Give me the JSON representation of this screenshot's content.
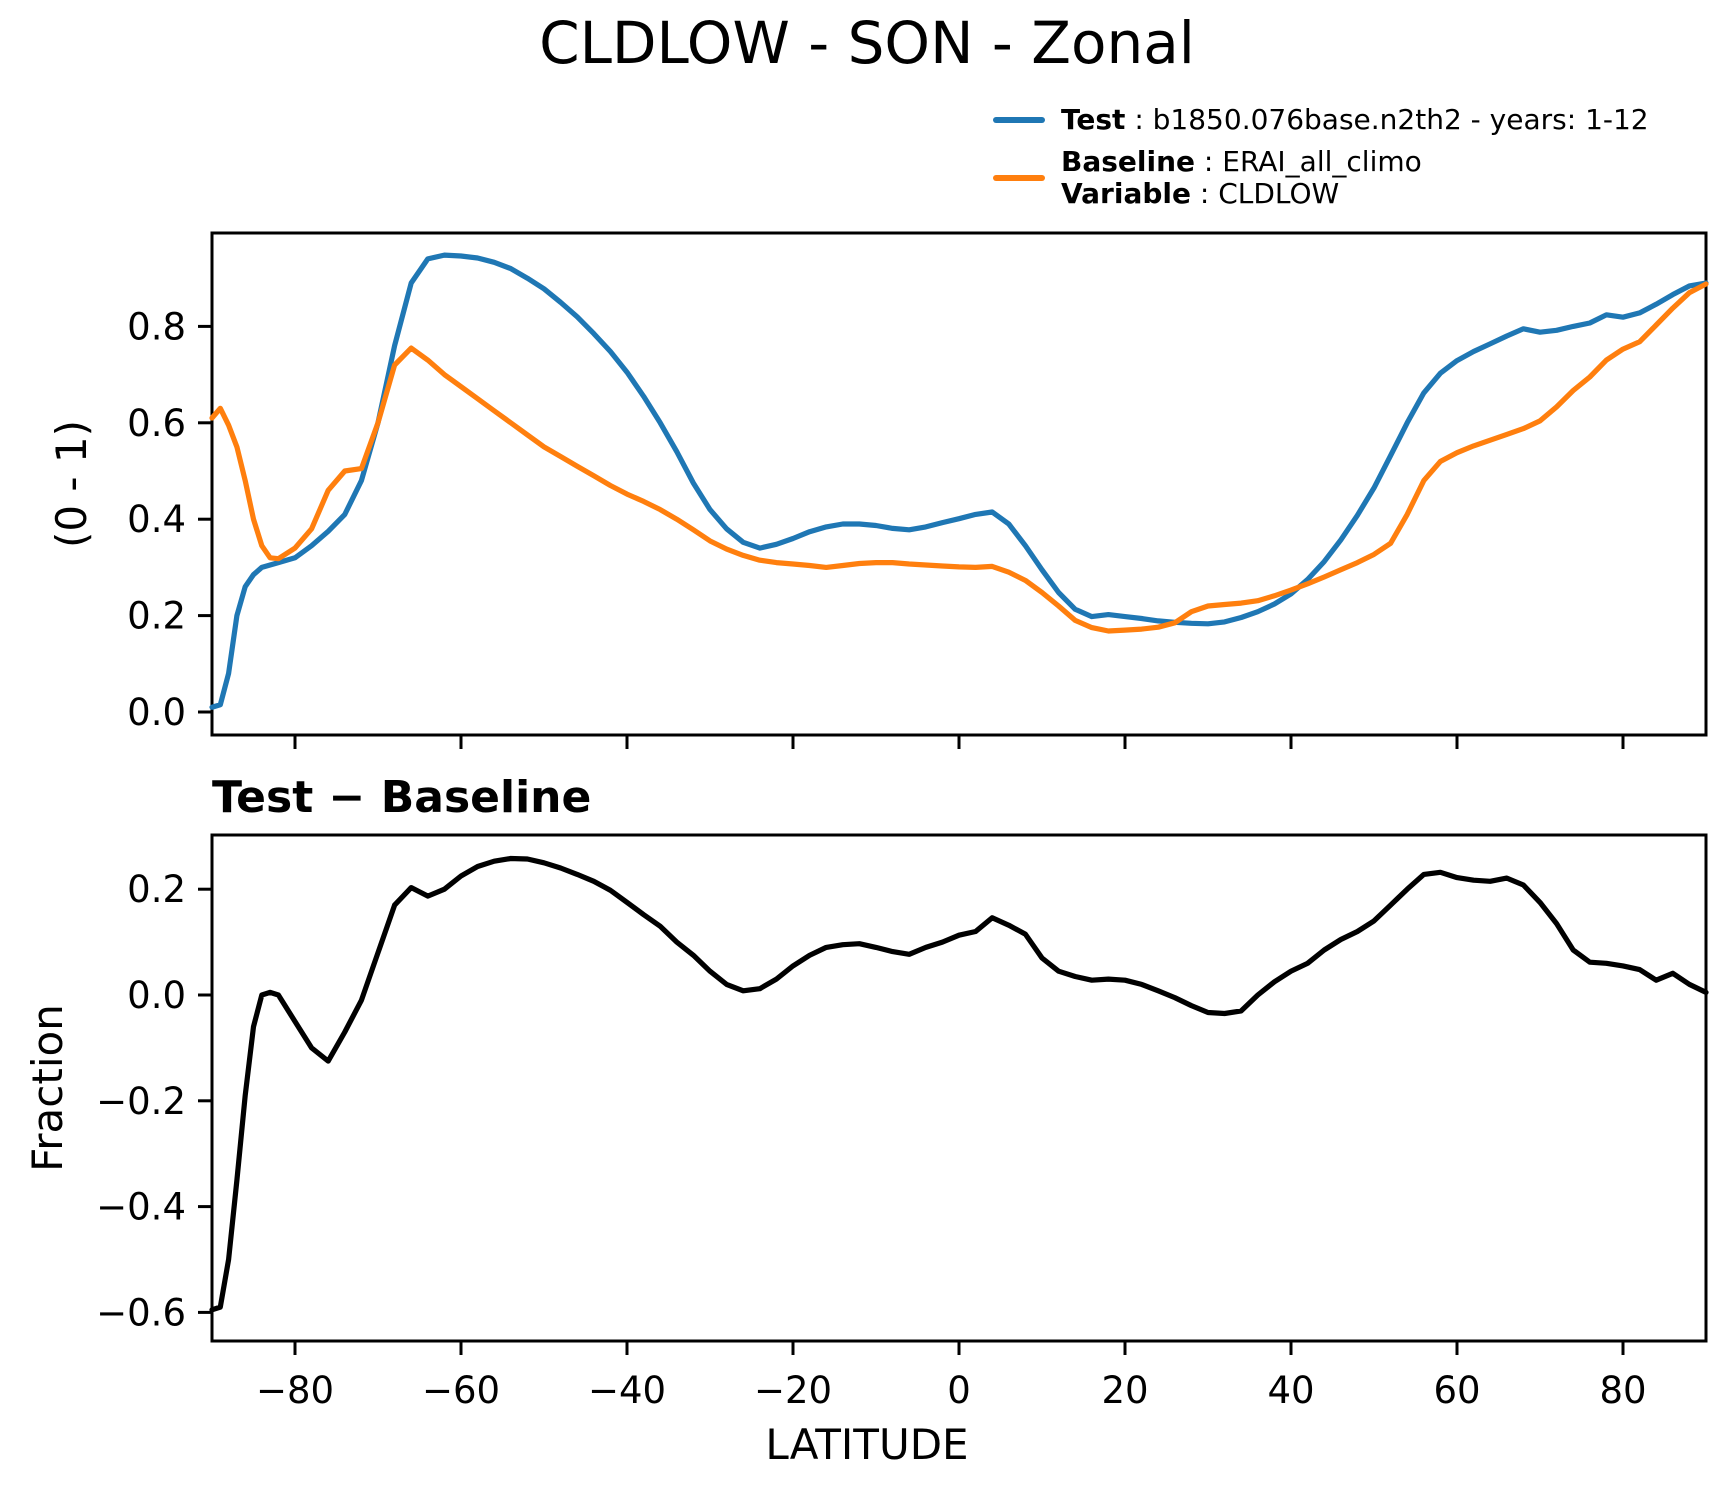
{
  "title": "CLDLOW - SON - Zonal",
  "subtitle": "Test − Baseline",
  "legend": {
    "test_label": "Test",
    "test_text": " : b1850.076base.n2th2 - years: 1-12",
    "baseline_label": "Baseline",
    "baseline_text": " : ERAI_all_climo",
    "variable_label": "Variable",
    "variable_text": " : CLDLOW",
    "test_color": "#1f77b4",
    "baseline_color": "#ff7f0e"
  },
  "axes": {
    "xlabel": "LATITUDE",
    "top_ylabel": "(0 - 1)",
    "bottom_ylabel": "Fraction"
  },
  "chart_data": [
    {
      "type": "line",
      "title": "CLDLOW - SON - Zonal",
      "xlabel": "LATITUDE",
      "ylabel": "(0 - 1)",
      "xlim": [
        -90,
        90
      ],
      "ylim": [
        -0.05,
        1.0
      ],
      "xticks": [
        -80,
        -60,
        -40,
        -20,
        0,
        20,
        40,
        60,
        80
      ],
      "yticks": [
        0.0,
        0.2,
        0.4,
        0.6,
        0.8
      ],
      "grid": false,
      "legend_position": "outside-top-right",
      "x": [
        -90,
        -89,
        -88,
        -87,
        -86,
        -85,
        -84,
        -83,
        -82,
        -80,
        -78,
        -76,
        -74,
        -72,
        -70,
        -68,
        -66,
        -64,
        -62,
        -60,
        -58,
        -56,
        -54,
        -52,
        -50,
        -48,
        -46,
        -44,
        -42,
        -40,
        -38,
        -36,
        -34,
        -32,
        -30,
        -28,
        -26,
        -24,
        -22,
        -20,
        -18,
        -16,
        -14,
        -12,
        -10,
        -8,
        -6,
        -4,
        -2,
        0,
        2,
        4,
        6,
        8,
        10,
        12,
        14,
        16,
        18,
        20,
        22,
        24,
        26,
        28,
        30,
        32,
        34,
        36,
        38,
        40,
        42,
        44,
        46,
        48,
        50,
        52,
        54,
        56,
        58,
        60,
        62,
        64,
        66,
        68,
        70,
        72,
        74,
        76,
        78,
        80,
        82,
        84,
        86,
        88,
        90
      ],
      "series": [
        {
          "name": "Test",
          "color": "#1f77b4",
          "values": [
            0.01,
            0.015,
            0.08,
            0.2,
            0.26,
            0.285,
            0.3,
            0.305,
            0.31,
            0.32,
            0.345,
            0.375,
            0.41,
            0.48,
            0.6,
            0.76,
            0.89,
            0.94,
            0.948,
            0.946,
            0.942,
            0.933,
            0.92,
            0.9,
            0.878,
            0.85,
            0.82,
            0.785,
            0.748,
            0.705,
            0.655,
            0.6,
            0.54,
            0.475,
            0.42,
            0.38,
            0.352,
            0.34,
            0.348,
            0.36,
            0.374,
            0.384,
            0.39,
            0.39,
            0.387,
            0.381,
            0.378,
            0.384,
            0.393,
            0.401,
            0.41,
            0.415,
            0.39,
            0.345,
            0.295,
            0.248,
            0.213,
            0.198,
            0.202,
            0.198,
            0.194,
            0.189,
            0.186,
            0.184,
            0.183,
            0.187,
            0.196,
            0.208,
            0.224,
            0.245,
            0.275,
            0.312,
            0.357,
            0.408,
            0.465,
            0.532,
            0.6,
            0.662,
            0.703,
            0.729,
            0.748,
            0.764,
            0.78,
            0.795,
            0.788,
            0.792,
            0.8,
            0.807,
            0.824,
            0.819,
            0.828,
            0.846,
            0.866,
            0.884,
            0.89
          ]
        },
        {
          "name": "Baseline",
          "color": "#ff7f0e",
          "values": [
            0.61,
            0.63,
            0.595,
            0.55,
            0.48,
            0.4,
            0.345,
            0.32,
            0.318,
            0.34,
            0.38,
            0.46,
            0.5,
            0.505,
            0.6,
            0.72,
            0.755,
            0.73,
            0.7,
            0.675,
            0.65,
            0.625,
            0.6,
            0.575,
            0.55,
            0.53,
            0.51,
            0.49,
            0.47,
            0.452,
            0.437,
            0.42,
            0.4,
            0.378,
            0.355,
            0.338,
            0.325,
            0.315,
            0.31,
            0.307,
            0.304,
            0.3,
            0.304,
            0.308,
            0.31,
            0.31,
            0.307,
            0.305,
            0.303,
            0.301,
            0.3,
            0.302,
            0.29,
            0.273,
            0.248,
            0.22,
            0.19,
            0.175,
            0.168,
            0.17,
            0.172,
            0.176,
            0.185,
            0.208,
            0.22,
            0.223,
            0.226,
            0.231,
            0.241,
            0.253,
            0.266,
            0.28,
            0.295,
            0.31,
            0.327,
            0.35,
            0.41,
            0.48,
            0.52,
            0.538,
            0.552,
            0.564,
            0.576,
            0.588,
            0.604,
            0.633,
            0.667,
            0.695,
            0.73,
            0.753,
            0.768,
            0.803,
            0.838,
            0.87,
            0.888
          ]
        }
      ]
    },
    {
      "type": "line",
      "title": "Test − Baseline",
      "xlabel": "LATITUDE",
      "ylabel": "Fraction",
      "xlim": [
        -90,
        90
      ],
      "ylim": [
        -0.64,
        0.3
      ],
      "xticks": [
        -80,
        -60,
        -40,
        -20,
        0,
        20,
        40,
        60,
        80
      ],
      "yticks": [
        0.2,
        0.0,
        -0.2,
        -0.4,
        -0.6
      ],
      "grid": false,
      "x": [
        -90,
        -89,
        -88,
        -87,
        -86,
        -85,
        -84,
        -83,
        -82,
        -80,
        -78,
        -76,
        -74,
        -72,
        -70,
        -68,
        -66,
        -64,
        -62,
        -60,
        -58,
        -56,
        -54,
        -52,
        -50,
        -48,
        -46,
        -44,
        -42,
        -40,
        -38,
        -36,
        -34,
        -32,
        -30,
        -28,
        -26,
        -24,
        -22,
        -20,
        -18,
        -16,
        -14,
        -12,
        -10,
        -8,
        -6,
        -4,
        -2,
        0,
        2,
        4,
        6,
        8,
        10,
        12,
        14,
        16,
        18,
        20,
        22,
        24,
        26,
        28,
        30,
        32,
        34,
        36,
        38,
        40,
        42,
        44,
        46,
        48,
        50,
        52,
        54,
        56,
        58,
        60,
        62,
        64,
        66,
        68,
        70,
        72,
        74,
        76,
        78,
        80,
        82,
        84,
        86,
        88,
        90
      ],
      "series": [
        {
          "name": "Test − Baseline",
          "color": "#000000",
          "values": [
            -0.595,
            -0.59,
            -0.5,
            -0.35,
            -0.19,
            -0.06,
            0.0,
            0.005,
            0.0,
            -0.05,
            -0.1,
            -0.125,
            -0.07,
            -0.01,
            0.08,
            0.17,
            0.203,
            0.187,
            0.2,
            0.225,
            0.243,
            0.253,
            0.258,
            0.257,
            0.25,
            0.24,
            0.228,
            0.215,
            0.198,
            0.175,
            0.152,
            0.13,
            0.1,
            0.075,
            0.045,
            0.02,
            0.008,
            0.012,
            0.03,
            0.055,
            0.075,
            0.09,
            0.095,
            0.097,
            0.09,
            0.082,
            0.077,
            0.09,
            0.1,
            0.113,
            0.12,
            0.146,
            0.132,
            0.115,
            0.07,
            0.045,
            0.035,
            0.028,
            0.03,
            0.028,
            0.02,
            0.008,
            -0.005,
            -0.02,
            -0.033,
            -0.035,
            -0.03,
            0.0,
            0.025,
            0.045,
            0.06,
            0.085,
            0.105,
            0.12,
            0.14,
            0.17,
            0.2,
            0.228,
            0.232,
            0.222,
            0.217,
            0.215,
            0.221,
            0.208,
            0.175,
            0.135,
            0.085,
            0.062,
            0.06,
            0.055,
            0.048,
            0.028,
            0.041,
            0.02,
            0.005
          ]
        }
      ]
    }
  ]
}
